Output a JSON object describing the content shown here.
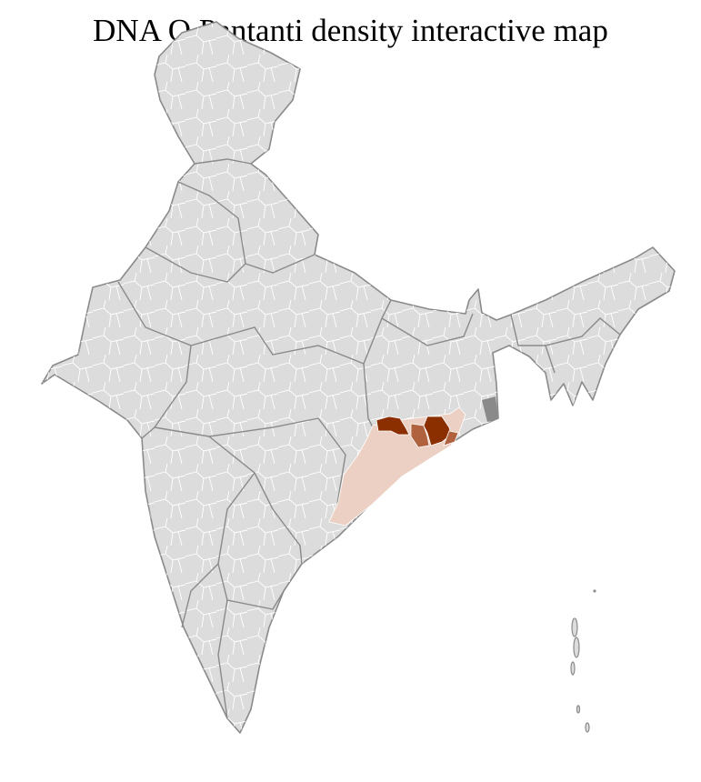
{
  "title": "DNA O Pantanti density interactive map",
  "colors": {
    "background_region": "#dcdcdc",
    "district_border": "#ffffff",
    "state_border": "#8a8a8a",
    "density_low": "#ebd0c3",
    "density_medium": "#b0613e",
    "density_high": "#8b2e00"
  },
  "map": {
    "country": "India",
    "highlighted_state": "Odisha",
    "highlighted_regions": [
      {
        "level": "high"
      },
      {
        "level": "high"
      },
      {
        "level": "medium"
      },
      {
        "level": "medium"
      },
      {
        "level": "low"
      }
    ]
  }
}
